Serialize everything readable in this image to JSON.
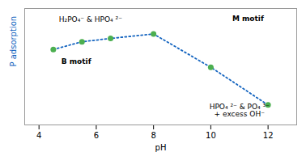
{
  "chart_data": {
    "type": "line",
    "x": [
      4.5,
      5.5,
      6.5,
      8.0,
      10.0,
      12.0
    ],
    "series": [
      {
        "values": [
          0.68,
          0.75,
          0.78,
          0.82,
          0.52,
          0.18
        ],
        "color": "#1565C0",
        "line_style": "dotted",
        "marker": "o",
        "colors": [
          "#4caf50",
          "#4caf50",
          "#4caf50",
          "#4caf50",
          "#4caf50",
          "#4caf50"
        ]
      }
    ],
    "x_label": "pH",
    "y_label": "P adsorption",
    "xlim": [
      3.5,
      13.0
    ],
    "xticks": [
      4,
      6,
      8,
      10,
      12
    ],
    "ylim": [
      0.0,
      1.05
    ],
    "yticks": [],
    "tick_labels": "x",
    "grid": false,
    "annotations": [
      {
        "text": "H₂PO₄⁻ & HPO₄ ²⁻",
        "x": 5.8,
        "y": 0.95
      },
      {
        "text": "B motif",
        "x": 5.3,
        "y": 0.57
      },
      {
        "text": "M motif",
        "x": 11.3,
        "y": 0.96
      },
      {
        "text": "HPO₄ ²⁻ & PO₄ ³⁻\n+ excess OH⁻",
        "x": 11.0,
        "y": 0.13
      }
    ]
  }
}
